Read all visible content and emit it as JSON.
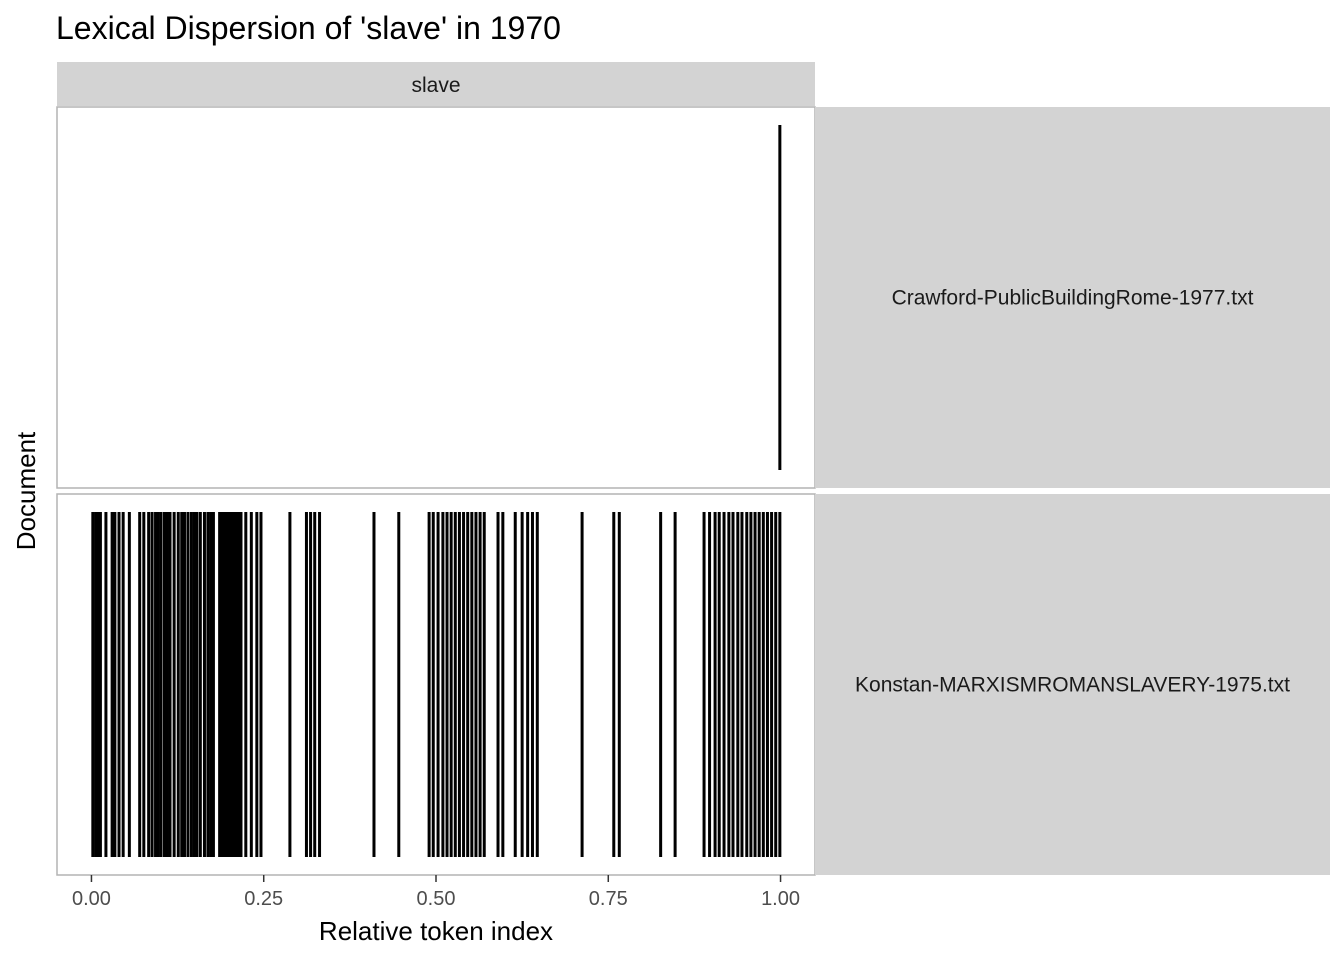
{
  "chart_data": {
    "type": "lexical-dispersion",
    "title": "Lexical Dispersion of 'slave' in 1970",
    "xlabel": "Relative token index",
    "ylabel": "Document",
    "facet_column": "slave",
    "xlim": [
      -0.05,
      1.05
    ],
    "x_ticks": [
      {
        "value": 0.0,
        "label": "0.00"
      },
      {
        "value": 0.25,
        "label": "0.25"
      },
      {
        "value": 0.5,
        "label": "0.50"
      },
      {
        "value": 0.75,
        "label": "0.75"
      },
      {
        "value": 1.0,
        "label": "1.00"
      }
    ],
    "grid": false,
    "panels": [
      {
        "document": "Crawford-PublicBuildingRome-1977.txt",
        "positions": [
          0.999
        ]
      },
      {
        "document": "Konstan-MARXISMROMANSLAVERY-1975.txt",
        "positions": [
          0.002,
          0.006,
          0.009,
          0.013,
          0.021,
          0.03,
          0.034,
          0.04,
          0.046,
          0.055,
          0.07,
          0.076,
          0.083,
          0.088,
          0.093,
          0.097,
          0.101,
          0.106,
          0.11,
          0.114,
          0.12,
          0.126,
          0.131,
          0.135,
          0.14,
          0.145,
          0.149,
          0.153,
          0.158,
          0.164,
          0.169,
          0.173,
          0.177,
          0.186,
          0.19,
          0.193,
          0.196,
          0.199,
          0.202,
          0.205,
          0.208,
          0.211,
          0.214,
          0.217,
          0.224,
          0.232,
          0.24,
          0.246,
          0.288,
          0.312,
          0.318,
          0.324,
          0.331,
          0.41,
          0.446,
          0.49,
          0.496,
          0.503,
          0.51,
          0.516,
          0.522,
          0.528,
          0.534,
          0.54,
          0.546,
          0.552,
          0.558,
          0.564,
          0.57,
          0.59,
          0.597,
          0.615,
          0.625,
          0.633,
          0.64,
          0.647,
          0.712,
          0.758,
          0.766,
          0.826,
          0.847,
          0.889,
          0.897,
          0.905,
          0.911,
          0.918,
          0.925,
          0.931,
          0.938,
          0.944,
          0.951,
          0.957,
          0.963,
          0.969,
          0.975,
          0.981,
          0.987,
          0.993,
          0.999
        ]
      }
    ]
  }
}
